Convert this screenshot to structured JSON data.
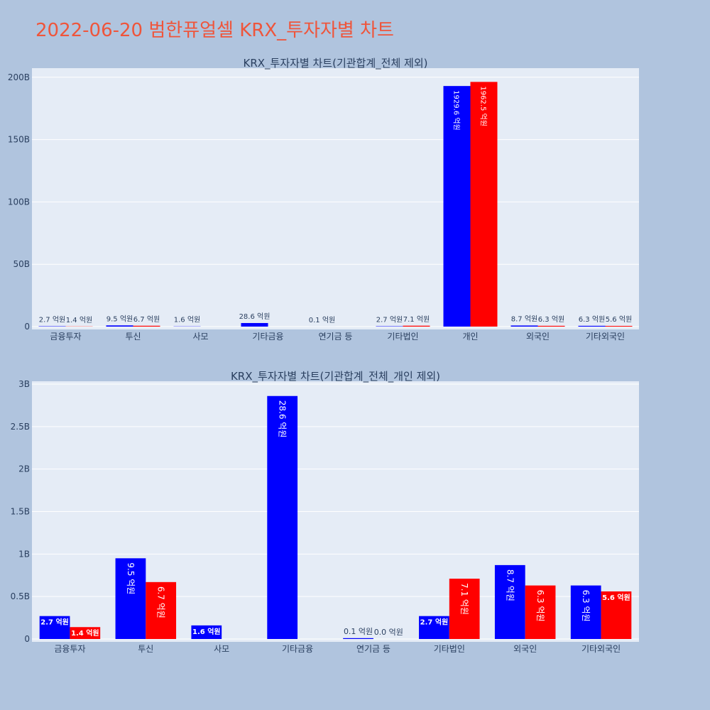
{
  "page": {
    "title": "2022-06-20 범한퓨얼셀 KRX_투자자별 차트",
    "title_color": "#ef553b",
    "background": "#b0c4de",
    "plot_background": "#e5ecf6"
  },
  "chart_data": [
    {
      "type": "bar",
      "title": "KRX_투자자별 차트(기관합계_전체 제외)",
      "categories": [
        "금융투자",
        "투신",
        "사모",
        "기타금융",
        "연기금 등",
        "기타법인",
        "개인",
        "외국인",
        "기타외국인"
      ],
      "ylim": [
        0,
        205000000000.0
      ],
      "yticks": [
        0,
        50000000000.0,
        100000000000.0,
        150000000000.0,
        200000000000.0
      ],
      "ytick_labels": [
        "0",
        "50B",
        "100B",
        "150B",
        "200B"
      ],
      "series": [
        {
          "color": "#0000ff",
          "values": [
            270000000.0,
            950000000.0,
            160000000.0,
            2860000000.0,
            10000000.0,
            270000000.0,
            192960000000.0,
            870000000.0,
            630000000.0
          ],
          "labels": [
            "2.7 억원",
            "9.5 억원",
            "1.6 억원",
            "28.6 억원",
            "0.1 억원",
            "2.7 억원",
            "1929.6 억원",
            "8.7 억원",
            "6.3 억원"
          ]
        },
        {
          "color": "#ff0000",
          "values": [
            140000000.0,
            670000000.0,
            null,
            null,
            null,
            710000000.0,
            196250000000.0,
            630000000.0,
            560000000.0
          ],
          "labels": [
            "1.4 억원",
            "6.7 억원",
            "",
            "",
            "",
            "7.1 억원",
            "1962.5 억원",
            "6.3 억원",
            "5.6 억원"
          ]
        }
      ]
    },
    {
      "type": "bar",
      "title": "KRX_투자자별 차트(기관합계_전체_개인 제외)",
      "categories": [
        "금융투자",
        "투신",
        "사모",
        "기타금융",
        "연기금 등",
        "기타법인",
        "외국인",
        "기타외국인"
      ],
      "ylim": [
        0,
        3000000000.0
      ],
      "yticks": [
        0,
        500000000.0,
        1000000000.0,
        1500000000.0,
        2000000000.0,
        2500000000.0,
        3000000000.0
      ],
      "ytick_labels": [
        "0",
        "0.5B",
        "1B",
        "1.5B",
        "2B",
        "2.5B",
        "3B"
      ],
      "series": [
        {
          "color": "#0000ff",
          "values": [
            270000000.0,
            950000000.0,
            160000000.0,
            2860000000.0,
            10000000.0,
            270000000.0,
            870000000.0,
            630000000.0
          ],
          "labels": [
            "2.7 억원",
            "9.5 억원",
            "1.6 억원",
            "28.6 억원",
            "0.1 억원",
            "2.7 억원",
            "8.7 억원",
            "6.3 억원"
          ]
        },
        {
          "color": "#ff0000",
          "values": [
            140000000.0,
            670000000.0,
            null,
            null,
            0,
            710000000.0,
            630000000.0,
            560000000.0
          ],
          "labels": [
            "1.4 억원",
            "6.7 억원",
            "",
            "",
            "0.0 억원",
            "7.1 억원",
            "6.3 억원",
            "5.6 억원"
          ]
        }
      ]
    }
  ]
}
